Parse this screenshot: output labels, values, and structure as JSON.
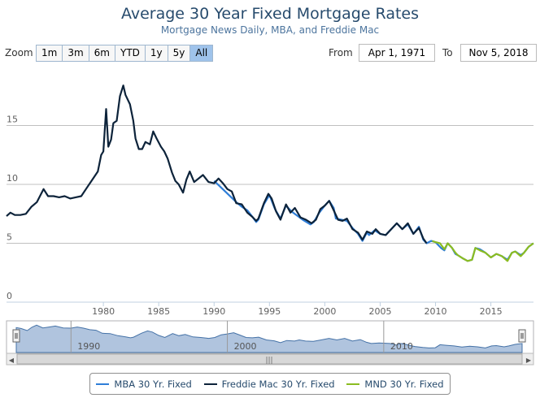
{
  "header": {
    "title": "Average 30 Year Fixed Mortgage Rates",
    "subtitle": "Mortgage News Daily, MBA, and Freddie Mac"
  },
  "range_selector": {
    "zoom_label": "Zoom",
    "buttons": [
      "1m",
      "3m",
      "6m",
      "YTD",
      "1y",
      "5y",
      "All"
    ],
    "active": "All",
    "from_label": "From",
    "from_value": "Apr 1, 1971",
    "to_label": "To",
    "to_value": "Nov 5, 2018"
  },
  "navigator": {
    "year_labels": [
      "1990",
      "2000",
      "2010"
    ]
  },
  "scrollbar": {
    "left_arrow": "◀",
    "right_arrow": "▶",
    "grip": "|||"
  },
  "colors": {
    "mba": "#2f7ed8",
    "freddie": "#0d233a",
    "mnd": "#8bbc21",
    "navigator_fill": "#b0c4de",
    "title": "#274b6d"
  },
  "chart_data": {
    "type": "line",
    "title": "Average 30 Year Fixed Mortgage Rates",
    "subtitle": "Mortgage News Daily, MBA, and Freddie Mac",
    "x_ticks": [
      1980,
      1985,
      1990,
      1995,
      2000,
      2005,
      2010,
      2015
    ],
    "y_ticks": [
      0,
      5,
      10,
      15
    ],
    "xlim": [
      1971.25,
      2018.85
    ],
    "ylim": [
      0,
      20
    ],
    "grid": "horizontal",
    "legend_position": "bottom",
    "series": [
      {
        "name": "MBA 30 Yr. Fixed",
        "color": "#2f7ed8",
        "points": [
          [
            1990.0,
            10.3
          ],
          [
            1991.0,
            9.4
          ],
          [
            1992.0,
            8.5
          ],
          [
            1992.5,
            8.1
          ],
          [
            1993.0,
            7.8
          ],
          [
            1993.5,
            7.2
          ],
          [
            1993.8,
            6.8
          ],
          [
            1994.0,
            7.0
          ],
          [
            1994.5,
            8.3
          ],
          [
            1995.0,
            9.1
          ],
          [
            1995.5,
            7.9
          ],
          [
            1996.0,
            7.1
          ],
          [
            1996.5,
            8.2
          ],
          [
            1997.0,
            7.7
          ],
          [
            1998.0,
            7.0
          ],
          [
            1998.7,
            6.6
          ],
          [
            1999.0,
            6.8
          ],
          [
            1999.5,
            7.6
          ],
          [
            2000.0,
            8.2
          ],
          [
            2000.4,
            8.6
          ],
          [
            2000.8,
            8.0
          ],
          [
            2001.0,
            7.1
          ],
          [
            2001.5,
            7.0
          ],
          [
            2002.0,
            6.9
          ],
          [
            2002.5,
            6.3
          ],
          [
            2003.0,
            5.8
          ],
          [
            2003.4,
            5.2
          ],
          [
            2003.8,
            5.9
          ],
          [
            2004.0,
            5.7
          ],
          [
            2004.5,
            6.1
          ],
          [
            2005.0,
            5.8
          ],
          [
            2005.5,
            5.7
          ],
          [
            2006.0,
            6.2
          ],
          [
            2006.5,
            6.7
          ],
          [
            2007.0,
            6.2
          ],
          [
            2007.5,
            6.6
          ],
          [
            2008.0,
            5.8
          ],
          [
            2008.5,
            6.4
          ],
          [
            2008.9,
            5.3
          ],
          [
            2009.2,
            5.0
          ],
          [
            2009.6,
            5.2
          ],
          [
            2010.0,
            5.1
          ],
          [
            2010.5,
            4.6
          ],
          [
            2010.8,
            4.4
          ],
          [
            2011.1,
            5.0
          ],
          [
            2011.5,
            4.6
          ],
          [
            2011.8,
            4.1
          ],
          [
            2012.0,
            4.0
          ],
          [
            2012.5,
            3.7
          ],
          [
            2012.9,
            3.5
          ],
          [
            2013.3,
            3.6
          ],
          [
            2013.6,
            4.6
          ],
          [
            2014.0,
            4.5
          ],
          [
            2014.5,
            4.2
          ],
          [
            2015.0,
            3.8
          ],
          [
            2015.5,
            4.1
          ],
          [
            2016.0,
            3.9
          ],
          [
            2016.5,
            3.6
          ],
          [
            2016.9,
            4.2
          ],
          [
            2017.2,
            4.3
          ],
          [
            2017.7,
            4.0
          ],
          [
            2018.0,
            4.2
          ],
          [
            2018.4,
            4.7
          ],
          [
            2018.85,
            5.0
          ]
        ]
      },
      {
        "name": "Freddie Mac 30 Yr. Fixed",
        "color": "#0d233a",
        "points": [
          [
            1971.25,
            7.3
          ],
          [
            1971.6,
            7.6
          ],
          [
            1972.0,
            7.4
          ],
          [
            1972.5,
            7.4
          ],
          [
            1973.0,
            7.5
          ],
          [
            1973.5,
            8.1
          ],
          [
            1974.0,
            8.5
          ],
          [
            1974.6,
            9.6
          ],
          [
            1975.0,
            9.0
          ],
          [
            1975.5,
            9.0
          ],
          [
            1976.0,
            8.9
          ],
          [
            1976.5,
            9.0
          ],
          [
            1977.0,
            8.8
          ],
          [
            1977.5,
            8.9
          ],
          [
            1978.0,
            9.0
          ],
          [
            1978.5,
            9.7
          ],
          [
            1979.0,
            10.4
          ],
          [
            1979.5,
            11.1
          ],
          [
            1979.8,
            12.5
          ],
          [
            1980.0,
            12.8
          ],
          [
            1980.25,
            16.4
          ],
          [
            1980.45,
            13.2
          ],
          [
            1980.7,
            13.8
          ],
          [
            1980.9,
            15.2
          ],
          [
            1981.2,
            15.4
          ],
          [
            1981.5,
            17.5
          ],
          [
            1981.8,
            18.4
          ],
          [
            1982.0,
            17.6
          ],
          [
            1982.4,
            16.8
          ],
          [
            1982.7,
            15.4
          ],
          [
            1982.9,
            13.9
          ],
          [
            1983.2,
            13.0
          ],
          [
            1983.5,
            13.0
          ],
          [
            1983.8,
            13.6
          ],
          [
            1984.2,
            13.4
          ],
          [
            1984.5,
            14.5
          ],
          [
            1984.8,
            13.9
          ],
          [
            1985.2,
            13.2
          ],
          [
            1985.5,
            12.8
          ],
          [
            1985.8,
            12.2
          ],
          [
            1986.2,
            11.0
          ],
          [
            1986.5,
            10.3
          ],
          [
            1986.8,
            10.0
          ],
          [
            1987.2,
            9.3
          ],
          [
            1987.5,
            10.4
          ],
          [
            1987.8,
            11.1
          ],
          [
            1988.2,
            10.2
          ],
          [
            1988.6,
            10.5
          ],
          [
            1989.0,
            10.8
          ],
          [
            1989.5,
            10.2
          ],
          [
            1990.0,
            10.1
          ],
          [
            1990.4,
            10.5
          ],
          [
            1990.8,
            10.1
          ],
          [
            1991.2,
            9.6
          ],
          [
            1991.6,
            9.4
          ],
          [
            1992.0,
            8.4
          ],
          [
            1992.5,
            8.3
          ],
          [
            1993.0,
            7.6
          ],
          [
            1993.5,
            7.2
          ],
          [
            1993.8,
            6.9
          ],
          [
            1994.0,
            7.1
          ],
          [
            1994.5,
            8.4
          ],
          [
            1994.9,
            9.2
          ],
          [
            1995.2,
            8.8
          ],
          [
            1995.6,
            7.7
          ],
          [
            1996.0,
            7.0
          ],
          [
            1996.5,
            8.3
          ],
          [
            1996.9,
            7.6
          ],
          [
            1997.3,
            8.0
          ],
          [
            1997.8,
            7.2
          ],
          [
            1998.3,
            7.0
          ],
          [
            1998.8,
            6.7
          ],
          [
            1999.2,
            7.0
          ],
          [
            1999.6,
            7.9
          ],
          [
            2000.0,
            8.2
          ],
          [
            2000.4,
            8.6
          ],
          [
            2000.8,
            7.8
          ],
          [
            2001.2,
            7.0
          ],
          [
            2001.6,
            6.9
          ],
          [
            2002.0,
            7.1
          ],
          [
            2002.5,
            6.2
          ],
          [
            2003.0,
            5.9
          ],
          [
            2003.4,
            5.3
          ],
          [
            2003.8,
            6.0
          ],
          [
            2004.3,
            5.8
          ],
          [
            2004.6,
            6.2
          ],
          [
            2005.0,
            5.8
          ],
          [
            2005.5,
            5.7
          ],
          [
            2006.0,
            6.2
          ],
          [
            2006.5,
            6.7
          ],
          [
            2007.0,
            6.2
          ],
          [
            2007.5,
            6.7
          ],
          [
            2008.0,
            5.8
          ],
          [
            2008.5,
            6.3
          ],
          [
            2008.9,
            5.4
          ],
          [
            2009.2,
            5.0
          ]
        ]
      },
      {
        "name": "MND 30 Yr. Fixed",
        "color": "#8bbc21",
        "points": [
          [
            2009.7,
            5.2
          ],
          [
            2010.0,
            5.1
          ],
          [
            2010.4,
            5.0
          ],
          [
            2010.8,
            4.5
          ],
          [
            2011.1,
            5.0
          ],
          [
            2011.5,
            4.6
          ],
          [
            2011.8,
            4.2
          ],
          [
            2012.0,
            4.0
          ],
          [
            2012.5,
            3.7
          ],
          [
            2012.9,
            3.5
          ],
          [
            2013.3,
            3.6
          ],
          [
            2013.6,
            4.6
          ],
          [
            2014.0,
            4.4
          ],
          [
            2014.5,
            4.2
          ],
          [
            2015.0,
            3.8
          ],
          [
            2015.5,
            4.1
          ],
          [
            2016.0,
            3.9
          ],
          [
            2016.5,
            3.5
          ],
          [
            2016.9,
            4.2
          ],
          [
            2017.2,
            4.3
          ],
          [
            2017.7,
            3.9
          ],
          [
            2018.0,
            4.2
          ],
          [
            2018.4,
            4.7
          ],
          [
            2018.85,
            5.0
          ]
        ]
      }
    ]
  },
  "legend": {
    "items": [
      "MBA 30 Yr. Fixed",
      "Freddie Mac 30 Yr. Fixed",
      "MND 30 Yr. Fixed"
    ]
  }
}
